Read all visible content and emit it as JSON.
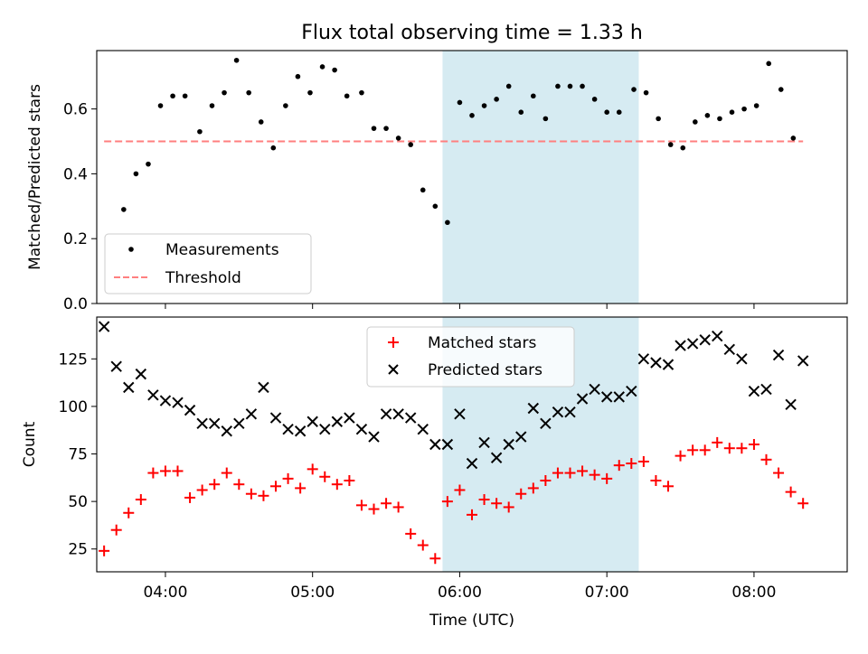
{
  "title": "Flux total observing time = 1.33 h",
  "colors": {
    "measurement": "#000000",
    "threshold": "#ff7f7f",
    "highlight": "#add8e6",
    "matched": "#ff0000",
    "predicted": "#000000"
  },
  "chart_data": [
    {
      "type": "scatter",
      "ylabel": "Matched/Predicted stars",
      "ylim": [
        0,
        0.78
      ],
      "yticks": [
        0.0,
        0.2,
        0.4,
        0.6
      ],
      "ytick_labels": [
        "0.0",
        "0.2",
        "0.4",
        "0.6"
      ],
      "xlim": [
        "03:32",
        "08:38"
      ],
      "highlight_span": [
        "05:53",
        "07:13"
      ],
      "legend": {
        "placement": "lower-left",
        "entries": [
          "Measurements",
          "Threshold"
        ]
      },
      "threshold": {
        "name": "Threshold",
        "value": 0.5,
        "x_range": [
          "03:35",
          "08:20"
        ]
      },
      "series": [
        {
          "name": "Measurements",
          "x": [
            "03:43",
            "03:48",
            "03:53",
            "03:58",
            "04:03",
            "04:08",
            "04:14",
            "04:19",
            "04:24",
            "04:29",
            "04:34",
            "04:39",
            "04:44",
            "04:49",
            "04:54",
            "04:59",
            "05:04",
            "05:09",
            "05:14",
            "05:20",
            "05:25",
            "05:30",
            "05:35",
            "05:40",
            "05:45",
            "05:50",
            "05:55",
            "06:00",
            "06:05",
            "06:10",
            "06:15",
            "06:20",
            "06:25",
            "06:30",
            "06:35",
            "06:40",
            "06:45",
            "06:50",
            "06:55",
            "07:00",
            "07:05",
            "07:11",
            "07:16",
            "07:21",
            "07:26",
            "07:31",
            "07:36",
            "07:41",
            "07:46",
            "07:51",
            "07:56",
            "08:01",
            "08:06",
            "08:11",
            "08:16"
          ],
          "y": [
            0.29,
            0.4,
            0.43,
            0.61,
            0.64,
            0.64,
            0.53,
            0.61,
            0.65,
            0.75,
            0.65,
            0.56,
            0.48,
            0.61,
            0.7,
            0.65,
            0.73,
            0.72,
            0.64,
            0.65,
            0.54,
            0.54,
            0.51,
            0.49,
            0.35,
            0.3,
            0.25,
            0.62,
            0.58,
            0.61,
            0.63,
            0.67,
            0.59,
            0.64,
            0.57,
            0.67,
            0.67,
            0.67,
            0.63,
            0.59,
            0.59,
            0.66,
            0.65,
            0.57,
            0.49,
            0.48,
            0.56,
            0.58,
            0.57,
            0.59,
            0.6,
            0.61,
            0.74,
            0.66,
            0.51
          ]
        }
      ]
    },
    {
      "type": "scatter",
      "ylabel": "Count",
      "xlabel": "Time (UTC)",
      "ylim": [
        13,
        147
      ],
      "yticks": [
        25,
        50,
        75,
        100,
        125
      ],
      "ytick_labels": [
        "25",
        "50",
        "75",
        "100",
        "125"
      ],
      "xlim": [
        "03:32",
        "08:38"
      ],
      "xticks": [
        "04:00",
        "05:00",
        "06:00",
        "07:00",
        "08:00"
      ],
      "xtick_labels": [
        "04:00",
        "05:00",
        "06:00",
        "07:00",
        "08:00"
      ],
      "highlight_span": [
        "05:53",
        "07:13"
      ],
      "legend": {
        "placement": "upper-center",
        "entries": [
          "Matched stars",
          "Predicted stars"
        ]
      },
      "series": [
        {
          "name": "Matched stars",
          "marker": "+",
          "x": [
            "03:35",
            "03:40",
            "03:45",
            "03:50",
            "03:55",
            "04:00",
            "04:05",
            "04:10",
            "04:15",
            "04:20",
            "04:25",
            "04:30",
            "04:35",
            "04:40",
            "04:45",
            "04:50",
            "04:55",
            "05:00",
            "05:05",
            "05:10",
            "05:15",
            "05:20",
            "05:25",
            "05:30",
            "05:35",
            "05:40",
            "05:45",
            "05:50",
            "05:55",
            "06:00",
            "06:05",
            "06:10",
            "06:15",
            "06:20",
            "06:25",
            "06:30",
            "06:35",
            "06:40",
            "06:45",
            "06:50",
            "06:55",
            "07:00",
            "07:05",
            "07:10",
            "07:15",
            "07:20",
            "07:25",
            "07:30",
            "07:35",
            "07:40",
            "07:45",
            "07:50",
            "07:55",
            "08:00",
            "08:05",
            "08:10",
            "08:15",
            "08:20"
          ],
          "y": [
            24,
            35,
            44,
            51,
            65,
            66,
            66,
            52,
            56,
            59,
            65,
            59,
            54,
            53,
            58,
            62,
            57,
            67,
            63,
            59,
            61,
            48,
            46,
            49,
            47,
            33,
            27,
            20,
            50,
            56,
            43,
            51,
            49,
            47,
            54,
            57,
            61,
            65,
            65,
            66,
            64,
            62,
            69,
            70,
            71,
            61,
            58,
            74,
            77,
            77,
            81,
            78,
            78,
            80,
            72,
            65,
            55,
            49
          ]
        },
        {
          "name": "Predicted stars",
          "marker": "x",
          "x": [
            "03:35",
            "03:40",
            "03:45",
            "03:50",
            "03:55",
            "04:00",
            "04:05",
            "04:10",
            "04:15",
            "04:20",
            "04:25",
            "04:30",
            "04:35",
            "04:40",
            "04:45",
            "04:50",
            "04:55",
            "05:00",
            "05:05",
            "05:10",
            "05:15",
            "05:20",
            "05:25",
            "05:30",
            "05:35",
            "05:40",
            "05:45",
            "05:50",
            "05:55",
            "06:00",
            "06:05",
            "06:10",
            "06:15",
            "06:20",
            "06:25",
            "06:30",
            "06:35",
            "06:40",
            "06:45",
            "06:50",
            "06:55",
            "07:00",
            "07:05",
            "07:10",
            "07:15",
            "07:20",
            "07:25",
            "07:30",
            "07:35",
            "07:40",
            "07:45",
            "07:50",
            "07:55",
            "08:00",
            "08:05",
            "08:10",
            "08:15",
            "08:20"
          ],
          "y": [
            142,
            121,
            110,
            117,
            106,
            103,
            102,
            98,
            91,
            91,
            87,
            91,
            96,
            110,
            94,
            88,
            87,
            92,
            88,
            92,
            94,
            88,
            84,
            96,
            96,
            94,
            88,
            80,
            80,
            96,
            70,
            81,
            73,
            80,
            84,
            99,
            91,
            97,
            97,
            104,
            109,
            105,
            105,
            108,
            125,
            123,
            122,
            132,
            133,
            135,
            137,
            130,
            125,
            108,
            109,
            127,
            101,
            124
          ]
        }
      ]
    }
  ]
}
